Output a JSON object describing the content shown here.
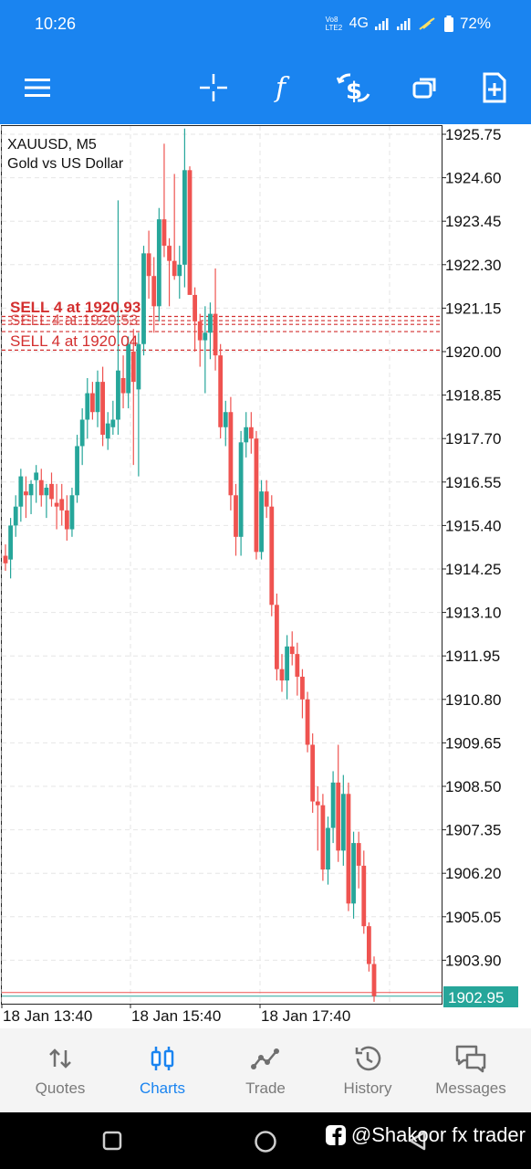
{
  "status_bar": {
    "time": "10:26",
    "net_label": "4G",
    "volte_label": "Vo8 LTE2",
    "battery": "72%"
  },
  "toolbar": {
    "icons": [
      "menu-icon",
      "crosshair-icon",
      "indicators-icon",
      "one-click-trading-icon",
      "timeframes-icon",
      "new-order-icon"
    ]
  },
  "chart": {
    "symbol_line": "XAUUSD, M5",
    "description": "Gold vs US Dollar",
    "current_price": "1902.95",
    "price_labels": [
      "1925.75",
      "1924.60",
      "1923.45",
      "1922.30",
      "1921.15",
      "1920.00",
      "1918.85",
      "1917.70",
      "1916.55",
      "1915.40",
      "1914.25",
      "1913.10",
      "1911.95",
      "1910.80",
      "1909.65",
      "1908.50",
      "1907.35",
      "1906.20",
      "1905.05",
      "1903.90"
    ],
    "time_labels": [
      "18 Jan 13:40",
      "18 Jan 15:40",
      "18 Jan 17:40"
    ],
    "order_label_main": "SELL 4 at 1920.04",
    "order_label_overlap_1": "SELL 4 at 1920.93",
    "order_label_overlap_2": "SELL 4 at 1920.53",
    "colors": {
      "bull": "#26a69a",
      "bear": "#ef5350",
      "order_line": "#d32f2f",
      "price_tag_bg": "#26a69a"
    }
  },
  "chart_data": {
    "type": "candlestick",
    "symbol": "XAUUSD",
    "timeframe": "M5",
    "ylim": [
      1902.9,
      1926.0
    ],
    "x_tick_labels": [
      "18 Jan 13:40",
      "18 Jan 15:40",
      "18 Jan 17:40"
    ],
    "y_tick_labels": [
      1925.75,
      1924.6,
      1923.45,
      1922.3,
      1921.15,
      1920.0,
      1918.85,
      1917.7,
      1916.55,
      1915.4,
      1914.25,
      1913.1,
      1911.95,
      1910.8,
      1909.65,
      1908.5,
      1907.35,
      1906.2,
      1905.05,
      1903.9
    ],
    "current_price": 1902.95,
    "order_levels": [
      1920.93,
      1920.82,
      1920.72,
      1920.53,
      1920.04
    ],
    "candles": [
      {
        "o": 1914.6,
        "h": 1914.9,
        "l": 1914.2,
        "c": 1914.4
      },
      {
        "o": 1914.5,
        "h": 1915.6,
        "l": 1914.0,
        "c": 1915.4
      },
      {
        "o": 1915.4,
        "h": 1916.2,
        "l": 1915.1,
        "c": 1915.9
      },
      {
        "o": 1915.9,
        "h": 1916.9,
        "l": 1915.5,
        "c": 1916.7
      },
      {
        "o": 1916.3,
        "h": 1916.7,
        "l": 1915.6,
        "c": 1916.2
      },
      {
        "o": 1916.2,
        "h": 1916.6,
        "l": 1915.7,
        "c": 1916.5
      },
      {
        "o": 1916.6,
        "h": 1917.0,
        "l": 1916.0,
        "c": 1916.8
      },
      {
        "o": 1916.6,
        "h": 1916.9,
        "l": 1915.9,
        "c": 1916.2
      },
      {
        "o": 1916.2,
        "h": 1916.5,
        "l": 1915.6,
        "c": 1916.4
      },
      {
        "o": 1916.5,
        "h": 1916.8,
        "l": 1915.9,
        "c": 1916.1
      },
      {
        "o": 1916.0,
        "h": 1916.5,
        "l": 1915.3,
        "c": 1915.9
      },
      {
        "o": 1916.1,
        "h": 1916.5,
        "l": 1915.4,
        "c": 1915.8
      },
      {
        "o": 1915.8,
        "h": 1916.2,
        "l": 1915.0,
        "c": 1915.3
      },
      {
        "o": 1915.3,
        "h": 1916.4,
        "l": 1915.1,
        "c": 1916.2
      },
      {
        "o": 1916.2,
        "h": 1917.8,
        "l": 1916.0,
        "c": 1917.5
      },
      {
        "o": 1917.5,
        "h": 1918.5,
        "l": 1917.0,
        "c": 1918.2
      },
      {
        "o": 1918.2,
        "h": 1919.3,
        "l": 1917.7,
        "c": 1918.9
      },
      {
        "o": 1918.9,
        "h": 1919.2,
        "l": 1918.2,
        "c": 1918.4
      },
      {
        "o": 1918.4,
        "h": 1919.5,
        "l": 1918.0,
        "c": 1919.2
      },
      {
        "o": 1919.2,
        "h": 1919.6,
        "l": 1917.5,
        "c": 1917.8
      },
      {
        "o": 1917.7,
        "h": 1918.4,
        "l": 1917.4,
        "c": 1918.1
      },
      {
        "o": 1918.0,
        "h": 1918.7,
        "l": 1917.8,
        "c": 1918.2
      },
      {
        "o": 1918.2,
        "h": 1924.0,
        "l": 1917.8,
        "c": 1919.5
      },
      {
        "o": 1919.3,
        "h": 1919.9,
        "l": 1918.5,
        "c": 1918.9
      },
      {
        "o": 1918.9,
        "h": 1920.4,
        "l": 1918.5,
        "c": 1920.2
      },
      {
        "o": 1920.0,
        "h": 1920.6,
        "l": 1917.0,
        "c": 1919.2
      },
      {
        "o": 1919.0,
        "h": 1920.5,
        "l": 1916.7,
        "c": 1920.2
      },
      {
        "o": 1920.2,
        "h": 1922.8,
        "l": 1919.9,
        "c": 1922.6
      },
      {
        "o": 1922.6,
        "h": 1923.2,
        "l": 1921.4,
        "c": 1922.0
      },
      {
        "o": 1922.0,
        "h": 1922.5,
        "l": 1920.5,
        "c": 1921.2
      },
      {
        "o": 1921.2,
        "h": 1923.8,
        "l": 1920.8,
        "c": 1923.5
      },
      {
        "o": 1923.5,
        "h": 1925.5,
        "l": 1922.5,
        "c": 1922.8
      },
      {
        "o": 1922.8,
        "h": 1923.0,
        "l": 1921.2,
        "c": 1922.4
      },
      {
        "o": 1922.4,
        "h": 1924.7,
        "l": 1921.9,
        "c": 1922.0
      },
      {
        "o": 1922.0,
        "h": 1922.8,
        "l": 1921.4,
        "c": 1922.3
      },
      {
        "o": 1922.3,
        "h": 1925.9,
        "l": 1921.7,
        "c": 1924.8
      },
      {
        "o": 1924.8,
        "h": 1924.9,
        "l": 1921.7,
        "c": 1921.5
      },
      {
        "o": 1921.5,
        "h": 1921.7,
        "l": 1920.0,
        "c": 1920.8
      },
      {
        "o": 1920.8,
        "h": 1921.0,
        "l": 1919.6,
        "c": 1920.3
      },
      {
        "o": 1920.3,
        "h": 1921.2,
        "l": 1918.9,
        "c": 1920.5
      },
      {
        "o": 1920.5,
        "h": 1921.3,
        "l": 1919.8,
        "c": 1921.0
      },
      {
        "o": 1921.0,
        "h": 1922.2,
        "l": 1919.5,
        "c": 1919.9
      },
      {
        "o": 1919.9,
        "h": 1920.2,
        "l": 1917.7,
        "c": 1918.0
      },
      {
        "o": 1918.0,
        "h": 1918.7,
        "l": 1917.5,
        "c": 1918.4
      },
      {
        "o": 1918.4,
        "h": 1918.8,
        "l": 1915.8,
        "c": 1916.2
      },
      {
        "o": 1916.2,
        "h": 1916.5,
        "l": 1914.6,
        "c": 1915.1
      },
      {
        "o": 1915.1,
        "h": 1917.9,
        "l": 1914.6,
        "c": 1917.6
      },
      {
        "o": 1917.6,
        "h": 1918.4,
        "l": 1917.2,
        "c": 1918.0
      },
      {
        "o": 1918.0,
        "h": 1918.4,
        "l": 1917.3,
        "c": 1917.7
      },
      {
        "o": 1917.7,
        "h": 1917.9,
        "l": 1914.5,
        "c": 1914.7
      },
      {
        "o": 1914.7,
        "h": 1916.6,
        "l": 1914.5,
        "c": 1916.3
      },
      {
        "o": 1916.3,
        "h": 1916.6,
        "l": 1915.6,
        "c": 1915.9
      },
      {
        "o": 1915.9,
        "h": 1916.2,
        "l": 1913.0,
        "c": 1913.3
      },
      {
        "o": 1913.3,
        "h": 1913.6,
        "l": 1911.3,
        "c": 1911.6
      },
      {
        "o": 1911.6,
        "h": 1912.0,
        "l": 1911.0,
        "c": 1911.3
      },
      {
        "o": 1911.3,
        "h": 1912.5,
        "l": 1910.8,
        "c": 1912.2
      },
      {
        "o": 1912.2,
        "h": 1912.6,
        "l": 1911.7,
        "c": 1912.0
      },
      {
        "o": 1912.0,
        "h": 1912.3,
        "l": 1910.9,
        "c": 1911.4
      },
      {
        "o": 1911.4,
        "h": 1911.6,
        "l": 1910.3,
        "c": 1910.8
      },
      {
        "o": 1910.8,
        "h": 1911.0,
        "l": 1909.4,
        "c": 1909.6
      },
      {
        "o": 1909.6,
        "h": 1909.9,
        "l": 1907.8,
        "c": 1908.1
      },
      {
        "o": 1908.1,
        "h": 1908.5,
        "l": 1906.8,
        "c": 1908.0
      },
      {
        "o": 1908.0,
        "h": 1908.3,
        "l": 1906.0,
        "c": 1906.3
      },
      {
        "o": 1906.3,
        "h": 1907.7,
        "l": 1905.9,
        "c": 1907.4
      },
      {
        "o": 1907.4,
        "h": 1908.9,
        "l": 1907.0,
        "c": 1908.6
      },
      {
        "o": 1908.6,
        "h": 1909.6,
        "l": 1906.5,
        "c": 1906.8
      },
      {
        "o": 1906.8,
        "h": 1908.8,
        "l": 1906.4,
        "c": 1908.3
      },
      {
        "o": 1908.3,
        "h": 1908.6,
        "l": 1905.2,
        "c": 1905.4
      },
      {
        "o": 1905.4,
        "h": 1907.3,
        "l": 1905.0,
        "c": 1907.0
      },
      {
        "o": 1907.0,
        "h": 1907.3,
        "l": 1905.8,
        "c": 1906.4
      },
      {
        "o": 1906.4,
        "h": 1906.8,
        "l": 1904.6,
        "c": 1904.8
      },
      {
        "o": 1904.8,
        "h": 1904.9,
        "l": 1903.6,
        "c": 1903.8
      },
      {
        "o": 1903.8,
        "h": 1904.0,
        "l": 1902.8,
        "c": 1902.95
      }
    ]
  },
  "bottom_nav": {
    "items": [
      {
        "label": "Quotes",
        "icon": "quotes-icon",
        "active": false
      },
      {
        "label": "Charts",
        "icon": "charts-icon",
        "active": true
      },
      {
        "label": "Trade",
        "icon": "trade-icon",
        "active": false
      },
      {
        "label": "History",
        "icon": "history-icon",
        "active": false
      },
      {
        "label": "Messages",
        "icon": "messages-icon",
        "active": false
      }
    ]
  },
  "system_nav": {
    "icons": [
      "recents-icon",
      "home-icon",
      "back-icon"
    ]
  },
  "watermark": {
    "text": "@Shakoor fx trader",
    "icon": "facebook-icon"
  }
}
